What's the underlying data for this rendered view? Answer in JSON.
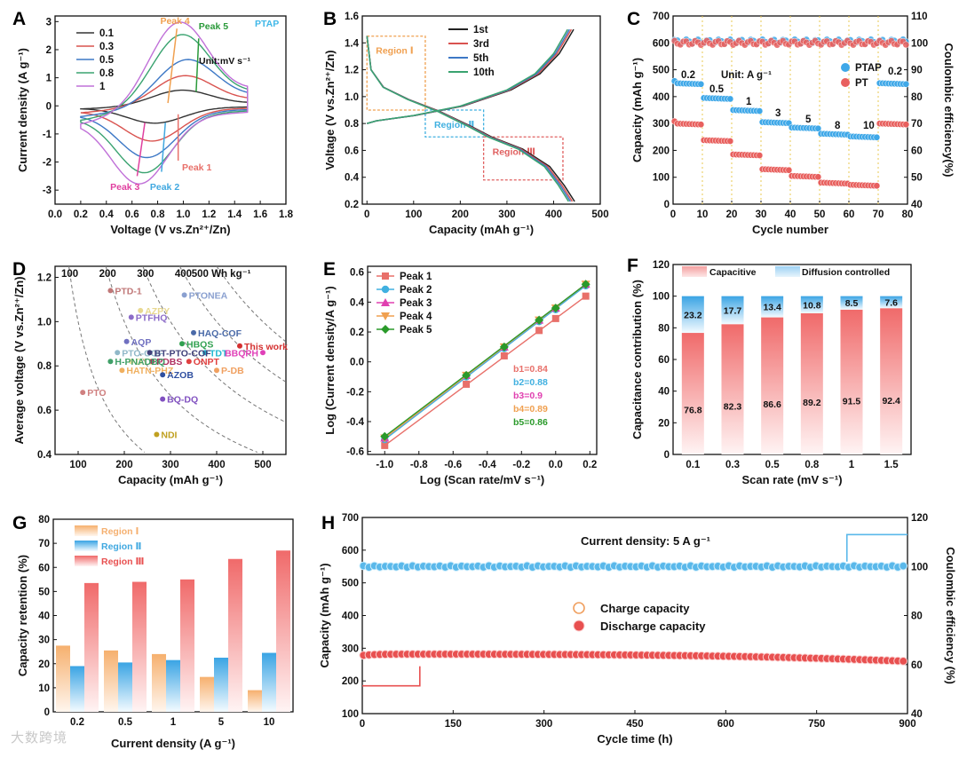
{
  "panels": [
    {
      "label": "A",
      "name": "cv-curves"
    },
    {
      "label": "B",
      "name": "gcd-profiles"
    },
    {
      "label": "C",
      "name": "rate-capability"
    },
    {
      "label": "D",
      "name": "voltage-vs-capacity"
    },
    {
      "label": "E",
      "name": "b-value-fit"
    },
    {
      "label": "F",
      "name": "capacitance-contribution"
    },
    {
      "label": "G",
      "name": "capacity-retention"
    },
    {
      "label": "H",
      "name": "long-cycling"
    }
  ],
  "watermark": "大数跨境",
  "chart_data": [
    {
      "id": "A",
      "type": "line",
      "xlabel": "Voltage (V vs.Zn²⁺/Zn)",
      "ylabel": "Current density (A g⁻¹)",
      "xlim": [
        0.0,
        1.8
      ],
      "ylim": [
        -3.5,
        3.2
      ],
      "xticks": [
        "0.0",
        "0.2",
        "0.4",
        "0.6",
        "0.8",
        "1.0",
        "1.2",
        "1.4",
        "1.6",
        "1.8"
      ],
      "yticks": [
        "-3",
        "-2",
        "-1",
        "0",
        "1",
        "2",
        "3"
      ],
      "tag": "PTAP",
      "unit_note": "Unit:mV s⁻¹",
      "colors": [
        "#333333",
        "#d9534f",
        "#3d78c6",
        "#3aa370",
        "#c070d8"
      ],
      "series": [
        {
          "name": "0.1",
          "oxPeak": [
            0.98,
            0.55
          ],
          "redPeak": [
            0.78,
            -0.55
          ]
        },
        {
          "name": "0.3",
          "oxPeak": [
            1.0,
            1.05
          ],
          "redPeak": [
            0.76,
            -1.1
          ]
        },
        {
          "name": "0.5",
          "oxPeak": [
            1.02,
            1.6
          ],
          "redPeak": [
            0.72,
            -1.6
          ]
        },
        {
          "name": "0.8",
          "oxPeak": [
            0.98,
            2.5
          ],
          "redPeak": [
            0.7,
            -2.05
          ]
        },
        {
          "name": "1",
          "oxPeak": [
            0.96,
            2.95
          ],
          "redPeak": [
            0.66,
            -2.35
          ]
        }
      ],
      "annotations": [
        {
          "text": "Peak 4",
          "color": "#f0a050"
        },
        {
          "text": "Peak 5",
          "color": "#2a9a3a"
        },
        {
          "text": "Peak 1",
          "color": "#e8706a"
        },
        {
          "text": "Peak 2",
          "color": "#40a8e0"
        },
        {
          "text": "Peak 3",
          "color": "#e040a0"
        }
      ]
    },
    {
      "id": "B",
      "type": "line",
      "xlabel": "Capacity (mAh g⁻¹)",
      "ylabel": "Voltage (V vs.Zn²⁺/Zn)",
      "xlim": [
        -10,
        500
      ],
      "ylim": [
        0.2,
        1.6
      ],
      "xticks": [
        "0",
        "100",
        "200",
        "300",
        "400",
        "500"
      ],
      "yticks": [
        "0.2",
        "0.4",
        "0.6",
        "0.8",
        "1.0",
        "1.2",
        "1.4",
        "1.6"
      ],
      "colors": [
        "#222222",
        "#d9534f",
        "#3d78c6",
        "#3aa370"
      ],
      "series": [
        {
          "name": "1st",
          "capacity": 445
        },
        {
          "name": "3rd",
          "capacity": 440
        },
        {
          "name": "5th",
          "capacity": 436
        },
        {
          "name": "10th",
          "capacity": 432
        }
      ],
      "charge": [
        [
          0,
          0.8
        ],
        [
          20,
          0.82
        ],
        [
          100,
          0.86
        ],
        [
          200,
          0.93
        ],
        [
          300,
          1.05
        ],
        [
          360,
          1.17
        ],
        [
          400,
          1.32
        ],
        [
          425,
          1.47
        ],
        [
          430,
          1.5
        ]
      ],
      "discharge_shape": [
        [
          0,
          1.45
        ],
        [
          0.02,
          1.2
        ],
        [
          0.08,
          1.07
        ],
        [
          0.2,
          0.98
        ],
        [
          0.35,
          0.89
        ],
        [
          0.5,
          0.78
        ],
        [
          0.6,
          0.7
        ],
        [
          0.75,
          0.61
        ],
        [
          0.88,
          0.48
        ],
        [
          0.95,
          0.34
        ],
        [
          1.0,
          0.22
        ]
      ],
      "regions": [
        {
          "name": "Region Ⅰ",
          "color": "#f0a050",
          "x": [
            0,
            125
          ],
          "y": [
            0.9,
            1.45
          ]
        },
        {
          "name": "Region Ⅱ",
          "color": "#40b0e0",
          "x": [
            125,
            250
          ],
          "y": [
            0.7,
            0.9
          ]
        },
        {
          "name": "Region Ⅲ",
          "color": "#e06060",
          "x": [
            250,
            420
          ],
          "y": [
            0.38,
            0.7
          ]
        }
      ]
    },
    {
      "id": "C",
      "type": "scatter",
      "xlabel": "Cycle number",
      "ylabel": "Capacity (mAh g⁻¹)",
      "y2label": "Coulombic efficiency(%)",
      "xlim": [
        0,
        80
      ],
      "ylim": [
        0,
        700
      ],
      "y2lim": [
        40,
        110
      ],
      "xticks": [
        "0",
        "10",
        "20",
        "30",
        "40",
        "50",
        "60",
        "70",
        "80"
      ],
      "yticks": [
        "0",
        "100",
        "200",
        "300",
        "400",
        "500",
        "600",
        "700"
      ],
      "y2ticks": [
        "40",
        "50",
        "60",
        "70",
        "80",
        "90",
        "100",
        "110"
      ],
      "unit_note": "Unit: A g⁻¹",
      "rates": [
        "0.2",
        "0.5",
        "1",
        "3",
        "5",
        "8",
        "10",
        "0.2"
      ],
      "series": [
        {
          "name": "PTAP",
          "color": "#3fa8e8",
          "capacity": [
            450,
            395,
            350,
            305,
            285,
            262,
            252,
            450
          ],
          "ce": 100.5
        },
        {
          "name": "PT",
          "color": "#e8605e",
          "capacity": [
            300,
            238,
            185,
            130,
            105,
            80,
            72,
            300
          ],
          "ce": 100.0
        }
      ]
    },
    {
      "id": "D",
      "type": "scatter",
      "xlabel": "Capacity (mAh g⁻¹)",
      "ylabel": "Average voltage (V vs.Zn²⁺/Zn)",
      "xlim": [
        50,
        550
      ],
      "ylim": [
        0.4,
        1.25
      ],
      "xticks": [
        "100",
        "200",
        "300",
        "400",
        "500"
      ],
      "yticks": [
        "0.4",
        "0.6",
        "0.8",
        "1.0",
        "1.2"
      ],
      "energy_lines": [
        "100",
        "200",
        "300",
        "400",
        "500 Wh kg⁻¹"
      ],
      "points": [
        {
          "name": "PTD-1",
          "x": 170,
          "y": 1.14,
          "color": "#c07878"
        },
        {
          "name": "PTONEA",
          "x": 330,
          "y": 1.12,
          "color": "#8aa0d0"
        },
        {
          "name": "AZPY",
          "x": 235,
          "y": 1.05,
          "color": "#e8d890"
        },
        {
          "name": "PTFHQ",
          "x": 215,
          "y": 1.02,
          "color": "#8c6cc8"
        },
        {
          "name": "HAQ-COF",
          "x": 350,
          "y": 0.95,
          "color": "#4a6aa8"
        },
        {
          "name": "This work",
          "x": 450,
          "y": 0.89,
          "color": "#d43030"
        },
        {
          "name": "AQP",
          "x": 205,
          "y": 0.91,
          "color": "#7070c0"
        },
        {
          "name": "HBQS",
          "x": 325,
          "y": 0.9,
          "color": "#30a050"
        },
        {
          "name": "TDT",
          "x": 375,
          "y": 0.86,
          "color": "#20b8d0"
        },
        {
          "name": "BBQPH",
          "x": 500,
          "y": 0.86,
          "color": "#e040b8"
        },
        {
          "name": "PTO-COF",
          "x": 185,
          "y": 0.86,
          "color": "#90b8c8"
        },
        {
          "name": "BT-PTO-COF",
          "x": 255,
          "y": 0.86,
          "color": "#40407a"
        },
        {
          "name": "DTT",
          "x": 215,
          "y": 0.82,
          "color": "#f0e0a0"
        },
        {
          "name": "PDBS",
          "x": 260,
          "y": 0.82,
          "color": "#b03060"
        },
        {
          "name": "ONPT",
          "x": 340,
          "y": 0.82,
          "color": "#e04040"
        },
        {
          "name": "H-PNADBQ",
          "x": 170,
          "y": 0.82,
          "color": "#40a068"
        },
        {
          "name": "P-DB",
          "x": 400,
          "y": 0.78,
          "color": "#f0a060"
        },
        {
          "name": "HATN-PHZ",
          "x": 195,
          "y": 0.78,
          "color": "#f0b060"
        },
        {
          "name": "AZOB",
          "x": 283,
          "y": 0.76,
          "color": "#3050a0"
        },
        {
          "name": "PTO",
          "x": 110,
          "y": 0.68,
          "color": "#d08080"
        },
        {
          "name": "BQ-DQ",
          "x": 283,
          "y": 0.65,
          "color": "#8050c0"
        },
        {
          "name": "NDI",
          "x": 270,
          "y": 0.49,
          "color": "#c0a020"
        }
      ]
    },
    {
      "id": "E",
      "type": "line",
      "xlabel": "Log (Scan rate/mV s⁻¹)",
      "ylabel": "Log (Current density/A g⁻¹)",
      "xlim": [
        -1.1,
        0.24
      ],
      "ylim": [
        -0.62,
        0.64
      ],
      "xticks": [
        "-1.0",
        "-0.8",
        "-0.6",
        "-0.4",
        "-0.2",
        "0.0",
        "0.2"
      ],
      "yticks": [
        "-0.6",
        "-0.4",
        "-0.2",
        "0.0",
        "0.2",
        "0.4",
        "0.6"
      ],
      "x": [
        -1.0,
        -0.523,
        -0.301,
        -0.097,
        0.0,
        0.176
      ],
      "series": [
        {
          "name": "Peak 1",
          "color": "#e8706a",
          "marker": "square",
          "b": 0.84,
          "y": [
            -0.56,
            -0.15,
            0.04,
            0.21,
            0.29,
            0.44
          ]
        },
        {
          "name": "Peak 2",
          "color": "#40b0e0",
          "marker": "circle",
          "b": 0.88,
          "y": [
            -0.52,
            -0.1,
            0.09,
            0.27,
            0.35,
            0.51
          ]
        },
        {
          "name": "Peak 3",
          "color": "#e040b0",
          "marker": "triangle",
          "b": 0.9,
          "y": [
            -0.51,
            -0.09,
            0.1,
            0.28,
            0.36,
            0.52
          ]
        },
        {
          "name": "Peak 4",
          "color": "#f0a050",
          "marker": "triangle-down",
          "b": 0.89,
          "y": [
            -0.51,
            -0.09,
            0.1,
            0.28,
            0.36,
            0.52
          ]
        },
        {
          "name": "Peak 5",
          "color": "#2a9a2a",
          "marker": "diamond",
          "b": 0.86,
          "y": [
            -0.5,
            -0.09,
            0.1,
            0.28,
            0.36,
            0.52
          ]
        }
      ],
      "b_labels": [
        "b1=0.84",
        "b2=0.88",
        "b3=0.9",
        "b4=0.89",
        "b5=0.86"
      ]
    },
    {
      "id": "F",
      "type": "bar",
      "xlabel": "Scan rate (mV s⁻¹)",
      "ylabel": "Capacitance contribution (%)",
      "ylim": [
        0,
        120
      ],
      "yticks": [
        "0",
        "20",
        "40",
        "60",
        "80",
        "100",
        "120"
      ],
      "categories": [
        "0.1",
        "0.3",
        "0.5",
        "0.8",
        "1",
        "1.5"
      ],
      "series": [
        {
          "name": "Capacitive",
          "color": "#f07070",
          "values": [
            76.8,
            82.3,
            86.6,
            89.2,
            91.5,
            92.4
          ]
        },
        {
          "name": "Diffusion controlled",
          "color": "#5ab8ea",
          "values": [
            23.2,
            17.7,
            13.4,
            10.8,
            8.5,
            7.6
          ]
        }
      ]
    },
    {
      "id": "G",
      "type": "bar",
      "xlabel": "Current density (A g⁻¹)",
      "ylabel": "Capacity retention (%)",
      "ylim": [
        0,
        80
      ],
      "yticks": [
        "0",
        "10",
        "20",
        "30",
        "40",
        "50",
        "60",
        "70",
        "80"
      ],
      "categories": [
        "0.2",
        "0.5",
        "1",
        "5",
        "10"
      ],
      "series": [
        {
          "name": "Region Ⅰ",
          "color": "#f5b070",
          "values": [
            27.5,
            25.5,
            24.0,
            14.5,
            9.0
          ]
        },
        {
          "name": "Region Ⅱ",
          "color": "#40a8e0",
          "values": [
            19.0,
            20.5,
            21.5,
            22.5,
            24.5
          ]
        },
        {
          "name": "Region Ⅲ",
          "color": "#e85050",
          "values": [
            53.5,
            54.0,
            55.0,
            63.5,
            67.0
          ]
        }
      ]
    },
    {
      "id": "H",
      "type": "scatter",
      "xlabel": "Cycle time (h)",
      "ylabel": "Capacity (mAh g⁻¹)",
      "y2label": "Coulombic efficiency (%)",
      "xlim": [
        0,
        900
      ],
      "ylim": [
        100,
        700
      ],
      "y2lim": [
        40,
        120
      ],
      "xticks": [
        "0",
        "150",
        "300",
        "450",
        "600",
        "750",
        "900"
      ],
      "yticks": [
        "100",
        "200",
        "300",
        "400",
        "500",
        "600",
        "700"
      ],
      "y2ticks": [
        "40",
        "60",
        "80",
        "100",
        "120"
      ],
      "note": "Current density: 5 A g⁻¹",
      "series": [
        {
          "name": "Charge capacity",
          "color": "#f0a060",
          "start": 285,
          "end": 262
        },
        {
          "name": "Discharge capacity",
          "color": "#e85050",
          "start": 282,
          "end": 260
        },
        {
          "name": "Coulombic efficiency",
          "color": "#5ab8ea",
          "ce": 100
        }
      ]
    }
  ]
}
